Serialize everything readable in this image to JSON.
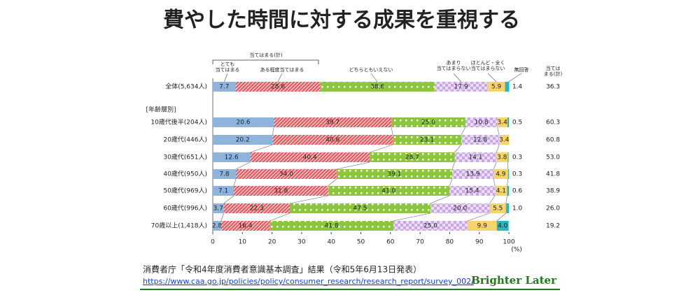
{
  "chart_data": {
    "type": "stacked-bar-horizontal",
    "title": "費やした時間に対する成果を重視する",
    "group_label": "[年齢層別]",
    "categories": [
      "全体(5,634人)",
      "10歳代後半(204人)",
      "20歳代(446人)",
      "30歳代(651人)",
      "40歳代(950人)",
      "50歳代(969人)",
      "60歳代(996人)",
      "70歳以上(1,418人)"
    ],
    "bracket_label": "当てはまる(計)",
    "series": [
      {
        "name": "とても\n当てはまる",
        "color": "#8fb4dc",
        "pattern": "solid",
        "values": [
          7.7,
          20.6,
          20.2,
          12.6,
          7.8,
          7.1,
          3.7,
          2.8
        ]
      },
      {
        "name": "ある程度当てはまる",
        "color": "#ec5a60",
        "pattern": "hatch",
        "values": [
          28.6,
          39.7,
          40.6,
          40.4,
          34.0,
          31.8,
          22.3,
          16.4
        ],
        "value_labels": [
          "28.6",
          "39.7",
          "40.6",
          "40.4",
          "34.0",
          "31.8",
          "22.3",
          "16.4"
        ]
      },
      {
        "name": "どちらともいえない",
        "color": "#8cc63f",
        "pattern": "dots",
        "values": [
          38.6,
          25.0,
          23.1,
          28.7,
          39.1,
          41.0,
          47.5,
          41.8
        ],
        "value_labels": [
          "38.6",
          "25.0",
          "23.1",
          "28.7",
          "39.1",
          "41.0",
          "47.5",
          "41.8"
        ]
      },
      {
        "name": "あまり\n当てはまらない",
        "color": "#c9a8e4",
        "pattern": "check",
        "values": [
          17.9,
          10.8,
          12.8,
          14.1,
          13.9,
          15.4,
          20.0,
          25.0
        ],
        "value_labels": [
          "17.9",
          "10.8",
          "12.8",
          "14.1",
          "13.9",
          "15.4",
          "20.0",
          "25.0"
        ]
      },
      {
        "name": "ほとんど・全く\n当てはまらない",
        "color": "#f7d36b",
        "pattern": "solid",
        "values": [
          5.9,
          3.4,
          3.4,
          3.8,
          4.9,
          4.1,
          5.5,
          9.9
        ]
      },
      {
        "name": "無回答",
        "color": "#2bb5c0",
        "pattern": "solid",
        "values": [
          1.4,
          0.5,
          null,
          0.3,
          0.3,
          0.6,
          1.0,
          4.0
        ],
        "value_labels": [
          "1.4",
          "0.5",
          null,
          "0.3",
          "0.3",
          "0.6",
          "1.0",
          "4.0"
        ]
      }
    ],
    "total": {
      "name": "当ては\nまる(計)",
      "values": [
        36.3,
        60.3,
        60.8,
        53.0,
        41.8,
        38.9,
        26.0,
        19.2
      ],
      "value_labels": [
        "36.3",
        "60.3",
        "60.8",
        "53.0",
        "41.8",
        "38.9",
        "26.0",
        "19.2"
      ]
    },
    "xlim": [
      0,
      100
    ],
    "xticks": [
      0,
      10,
      20,
      30,
      40,
      50,
      60,
      70,
      80,
      90,
      100
    ],
    "x_unit": "(%)",
    "source": "消費者庁「令和4年度消費者意識基本調査」結果（令和5年6月13日発表）",
    "url": "https://www.caa.go.jp/policies/policy/consumer_research/research_report/survey_002/",
    "brand": "Brighter Later"
  }
}
